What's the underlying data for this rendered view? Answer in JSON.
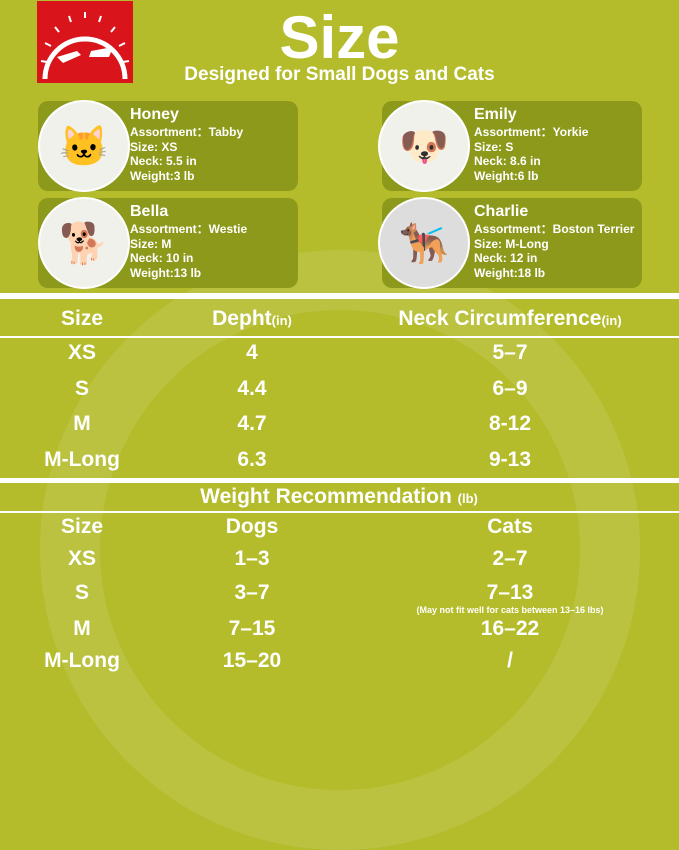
{
  "logo": {
    "icon": "hand-and-paw-logo"
  },
  "title": "Size",
  "subtitle": "Designed for Small Dogs and Cats",
  "pets": [
    {
      "name": "Honey",
      "assortment": "Assortment：Tabby",
      "size": "Size: XS",
      "neck": "Neck: 5.5 in",
      "weight": "Weight:3 lb",
      "photo": "kitten-photo"
    },
    {
      "name": "Emily",
      "assortment": "Assortment：Yorkie",
      "size": "Size: S",
      "neck": "Neck: 8.6 in",
      "weight": "Weight:6 lb",
      "photo": "yorkie-photo"
    },
    {
      "name": "Bella",
      "assortment": "Assortment：Westie",
      "size": "Size: M",
      "neck": "Neck: 10 in",
      "weight": "Weight:13 lb",
      "photo": "westie-photo"
    },
    {
      "name": "Charlie",
      "assortment": "Assortment：Boston Terrier",
      "size": "Size: M-Long",
      "neck": "Neck: 12 in",
      "weight": "Weight:18 lb",
      "photo": "black-terrier-photo"
    }
  ],
  "size_table": {
    "headers": {
      "size": "Size",
      "depth": "Depht",
      "depth_unit": "(in)",
      "neck": "Neck Circumference",
      "neck_unit": "(in)"
    },
    "rows": [
      {
        "size": "XS",
        "depth": "4",
        "neck": "5–7"
      },
      {
        "size": "S",
        "depth": "4.4",
        "neck": "6–9"
      },
      {
        "size": "M",
        "depth": "4.7",
        "neck": "8-12"
      },
      {
        "size": "M-Long",
        "depth": "6.3",
        "neck": "9-13"
      }
    ]
  },
  "weight_table": {
    "title": "Weight Recommendation",
    "unit": "(lb)",
    "headers": {
      "size": "Size",
      "dogs": "Dogs",
      "cats": "Cats"
    },
    "rows": [
      {
        "size": "XS",
        "dogs": "1–3",
        "cats": "2–7"
      },
      {
        "size": "S",
        "dogs": "3–7",
        "cats": "7–13",
        "note": "(May not fit well for cats between 13–16 lbs)"
      },
      {
        "size": "M",
        "dogs": "7–15",
        "cats": "16–22"
      },
      {
        "size": "M-Long",
        "dogs": "15–20",
        "cats": "/"
      }
    ]
  },
  "colors": {
    "background": "#b4bc2b",
    "card": "#8d991b",
    "logo": "#d9141b"
  }
}
